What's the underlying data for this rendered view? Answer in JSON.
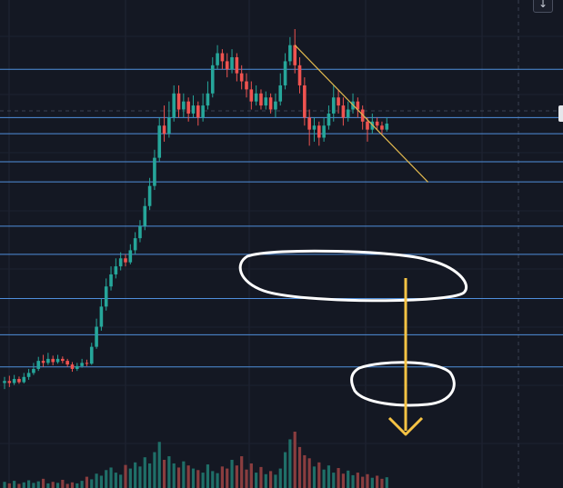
{
  "chart_data": {
    "type": "candlestick",
    "title": "",
    "xlabel": "",
    "ylabel": "",
    "ylim": [
      0,
      100
    ],
    "grid": true,
    "colors": {
      "up": "#26a69a",
      "down": "#ef5350",
      "volume_up": "#1f6f68",
      "volume_down": "#8a3d3f",
      "level": "#4f8fdc",
      "trendline": "#e0b84f",
      "marker": "#ffffff",
      "arrow": "#f6c344"
    },
    "candles": [
      [
        16,
        16.5,
        14.5,
        17.5
      ],
      [
        16.5,
        16,
        15,
        17.8
      ],
      [
        16,
        17,
        15.5,
        18
      ],
      [
        17,
        16.2,
        15.8,
        17.6
      ],
      [
        16.2,
        17.5,
        15.9,
        18.5
      ],
      [
        17.5,
        18.5,
        16.8,
        19.5
      ],
      [
        18.5,
        19.5,
        18,
        21
      ],
      [
        19.5,
        21.5,
        19,
        22.5
      ],
      [
        21.5,
        21,
        20,
        23
      ],
      [
        21,
        22,
        20.5,
        23.5
      ],
      [
        22,
        21.2,
        20.4,
        22.8
      ],
      [
        21.2,
        22,
        20.8,
        23
      ],
      [
        22,
        21.5,
        20.9,
        22.6
      ],
      [
        21.5,
        20.6,
        20,
        22
      ],
      [
        20.6,
        19.5,
        18.8,
        21.2
      ],
      [
        19.5,
        20.2,
        19,
        21
      ],
      [
        20.2,
        21,
        19.8,
        22
      ],
      [
        21,
        20.8,
        20.2,
        21.8
      ],
      [
        20.8,
        25,
        20.5,
        26
      ],
      [
        25,
        30,
        24.5,
        32
      ],
      [
        30,
        35,
        29,
        37
      ],
      [
        35,
        40,
        34,
        42
      ],
      [
        40,
        43,
        39,
        45
      ],
      [
        43,
        45,
        42,
        47
      ],
      [
        45,
        47,
        44,
        48.5
      ],
      [
        47,
        46,
        45,
        48
      ],
      [
        46,
        49,
        45.5,
        50.5
      ],
      [
        49,
        52,
        48,
        53.5
      ],
      [
        52,
        55,
        51,
        56.5
      ],
      [
        55,
        60,
        54,
        62
      ],
      [
        60,
        65,
        59,
        67
      ],
      [
        65,
        72,
        64,
        74
      ],
      [
        72,
        80,
        71,
        82
      ],
      [
        80,
        78,
        76,
        85
      ],
      [
        78,
        82,
        77,
        86
      ],
      [
        82,
        88,
        81,
        90
      ],
      [
        88,
        84,
        82,
        90
      ],
      [
        84,
        86,
        82,
        88
      ],
      [
        86,
        83,
        81,
        87
      ],
      [
        83,
        85,
        82,
        87.5
      ],
      [
        85,
        82,
        80,
        86
      ],
      [
        82,
        85,
        81,
        88
      ],
      [
        85,
        88,
        84,
        91
      ],
      [
        88,
        95,
        87,
        97
      ],
      [
        95,
        98,
        94,
        100
      ],
      [
        98,
        96,
        94,
        99
      ],
      [
        96,
        94,
        92,
        98
      ],
      [
        94,
        97,
        93,
        99
      ],
      [
        97,
        93,
        91,
        98
      ],
      [
        93,
        91,
        89,
        95
      ],
      [
        91,
        89,
        87,
        93
      ],
      [
        89,
        86,
        84,
        91
      ],
      [
        86,
        88,
        85,
        90
      ],
      [
        88,
        85,
        84,
        89
      ],
      [
        85,
        87,
        84,
        88.5
      ],
      [
        87,
        84,
        83,
        88
      ],
      [
        84,
        86,
        82,
        88
      ],
      [
        86,
        90,
        85,
        93
      ],
      [
        90,
        96,
        89,
        98
      ],
      [
        96,
        100,
        95,
        102
      ],
      [
        100,
        95,
        93,
        104
      ],
      [
        95,
        90,
        88,
        97
      ],
      [
        90,
        82,
        80,
        92
      ],
      [
        82,
        79,
        75,
        84
      ],
      [
        79,
        80,
        76,
        82
      ],
      [
        80,
        77,
        75,
        81
      ],
      [
        77,
        80,
        76,
        82
      ],
      [
        80,
        83,
        79,
        85
      ],
      [
        83,
        87,
        81,
        90
      ],
      [
        87,
        85,
        83,
        89
      ],
      [
        85,
        82,
        80,
        87
      ],
      [
        82,
        84,
        81,
        86
      ],
      [
        84,
        86,
        83,
        88
      ],
      [
        86,
        84,
        82,
        87
      ],
      [
        84,
        81,
        79,
        85
      ],
      [
        81,
        79,
        76,
        82
      ],
      [
        79,
        81,
        78,
        83
      ],
      [
        81,
        80,
        79,
        82
      ],
      [
        80,
        79,
        78,
        81
      ],
      [
        79,
        80.5,
        78.5,
        82
      ]
    ],
    "volumes": [
      12,
      9,
      14,
      8,
      11,
      15,
      10,
      13,
      18,
      9,
      12,
      10,
      16,
      8,
      11,
      9,
      14,
      22,
      17,
      28,
      24,
      35,
      40,
      30,
      26,
      45,
      38,
      50,
      42,
      60,
      48,
      70,
      90,
      55,
      62,
      48,
      40,
      52,
      44,
      38,
      35,
      30,
      46,
      33,
      29,
      42,
      38,
      55,
      44,
      62,
      36,
      48,
      30,
      41,
      27,
      33,
      26,
      38,
      70,
      95,
      110,
      80,
      64,
      58,
      42,
      50,
      36,
      44,
      30,
      39,
      28,
      34,
      25,
      30,
      22,
      27,
      20,
      24,
      18,
      21
    ],
    "horizontal_levels": [
      94,
      82,
      78,
      71,
      66,
      55,
      48,
      37,
      28,
      20
    ],
    "trendline": {
      "from_index": 60,
      "from_value": 100,
      "to_index": 80,
      "to_value": 70
    },
    "support_zone_index": [
      60,
      82
    ],
    "target_zone_index": [
      70,
      78
    ]
  }
}
